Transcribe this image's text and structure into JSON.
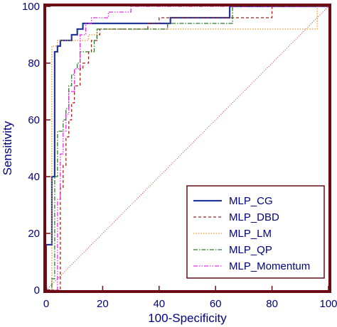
{
  "chart_data": {
    "type": "line",
    "title": "",
    "xlabel": "100-Specificity",
    "ylabel": "Sensitivity",
    "xlim": [
      0,
      100
    ],
    "ylim": [
      0,
      100
    ],
    "x_ticks": [
      "0",
      "20",
      "40",
      "60",
      "80",
      "100"
    ],
    "y_ticks": [
      "0",
      "20",
      "40",
      "60",
      "80",
      "100"
    ],
    "grid": false,
    "legend_position": "bottom-right",
    "colors": {
      "frame": "#6b0a12",
      "text": "#000080",
      "diagonal": "#c83a3a"
    },
    "reference_line": {
      "style": "dotted",
      "points": [
        [
          0,
          0
        ],
        [
          100,
          100
        ]
      ]
    },
    "series": [
      {
        "name": "MLP_CG",
        "color": "#24389a",
        "style": "solid",
        "points": [
          [
            0,
            0
          ],
          [
            0,
            16
          ],
          [
            2,
            16
          ],
          [
            2,
            40
          ],
          [
            3,
            40
          ],
          [
            3,
            84
          ],
          [
            4,
            84
          ],
          [
            4,
            86
          ],
          [
            5,
            86
          ],
          [
            5,
            88
          ],
          [
            9,
            88
          ],
          [
            9,
            90
          ],
          [
            11,
            90
          ],
          [
            11,
            92
          ],
          [
            13,
            92
          ],
          [
            13,
            94
          ],
          [
            44,
            94
          ],
          [
            44,
            96
          ],
          [
            65,
            96
          ],
          [
            65,
            100
          ],
          [
            100,
            100
          ]
        ]
      },
      {
        "name": "MLP_DBD",
        "color": "#9a2424",
        "style": "dashed",
        "points": [
          [
            0,
            0
          ],
          [
            5,
            0
          ],
          [
            5,
            36
          ],
          [
            6,
            36
          ],
          [
            6,
            44
          ],
          [
            7,
            44
          ],
          [
            7,
            54
          ],
          [
            8,
            54
          ],
          [
            8,
            60
          ],
          [
            9,
            60
          ],
          [
            9,
            66
          ],
          [
            10,
            66
          ],
          [
            10,
            72
          ],
          [
            12,
            72
          ],
          [
            12,
            78
          ],
          [
            13,
            78
          ],
          [
            13,
            80
          ],
          [
            15,
            80
          ],
          [
            15,
            84
          ],
          [
            16,
            84
          ],
          [
            16,
            88
          ],
          [
            18,
            88
          ],
          [
            18,
            90
          ],
          [
            19,
            90
          ],
          [
            19,
            92
          ],
          [
            36,
            92
          ],
          [
            36,
            94
          ],
          [
            40,
            94
          ],
          [
            40,
            96
          ],
          [
            80,
            96
          ],
          [
            80,
            100
          ],
          [
            100,
            100
          ]
        ]
      },
      {
        "name": "MLP_LM",
        "color": "#e8962e",
        "style": "dotted",
        "points": [
          [
            0,
            0
          ],
          [
            2,
            0
          ],
          [
            2,
            86
          ],
          [
            4,
            86
          ],
          [
            4,
            88
          ],
          [
            15,
            88
          ],
          [
            15,
            90
          ],
          [
            18,
            90
          ],
          [
            18,
            92
          ],
          [
            96,
            92
          ],
          [
            96,
            100
          ],
          [
            100,
            100
          ]
        ]
      },
      {
        "name": "MLP_QP",
        "color": "#2f7a2f",
        "style": "dashdot",
        "points": [
          [
            0,
            0
          ],
          [
            2,
            0
          ],
          [
            2,
            4
          ],
          [
            3,
            4
          ],
          [
            3,
            40
          ],
          [
            4,
            40
          ],
          [
            4,
            56
          ],
          [
            6,
            56
          ],
          [
            6,
            60
          ],
          [
            7,
            60
          ],
          [
            7,
            64
          ],
          [
            8,
            64
          ],
          [
            8,
            72
          ],
          [
            9,
            72
          ],
          [
            9,
            76
          ],
          [
            10,
            76
          ],
          [
            10,
            78
          ],
          [
            11,
            78
          ],
          [
            11,
            80
          ],
          [
            12,
            80
          ],
          [
            12,
            84
          ],
          [
            17,
            84
          ],
          [
            17,
            88
          ],
          [
            18,
            88
          ],
          [
            18,
            92
          ],
          [
            43,
            92
          ],
          [
            43,
            94
          ],
          [
            66,
            94
          ],
          [
            66,
            100
          ],
          [
            100,
            100
          ]
        ]
      },
      {
        "name": "MLP_Momentum",
        "color": "#e22ee2",
        "style": "dashdotdot",
        "points": [
          [
            0,
            0
          ],
          [
            4,
            0
          ],
          [
            4,
            32
          ],
          [
            5,
            32
          ],
          [
            5,
            48
          ],
          [
            6,
            48
          ],
          [
            6,
            56
          ],
          [
            7,
            56
          ],
          [
            7,
            62
          ],
          [
            8,
            62
          ],
          [
            8,
            70
          ],
          [
            10,
            70
          ],
          [
            10,
            78
          ],
          [
            12,
            78
          ],
          [
            12,
            90
          ],
          [
            14,
            90
          ],
          [
            14,
            94
          ],
          [
            16,
            94
          ],
          [
            16,
            96
          ],
          [
            22,
            96
          ],
          [
            22,
            98
          ],
          [
            30,
            98
          ],
          [
            30,
            100
          ],
          [
            100,
            100
          ]
        ]
      }
    ]
  }
}
